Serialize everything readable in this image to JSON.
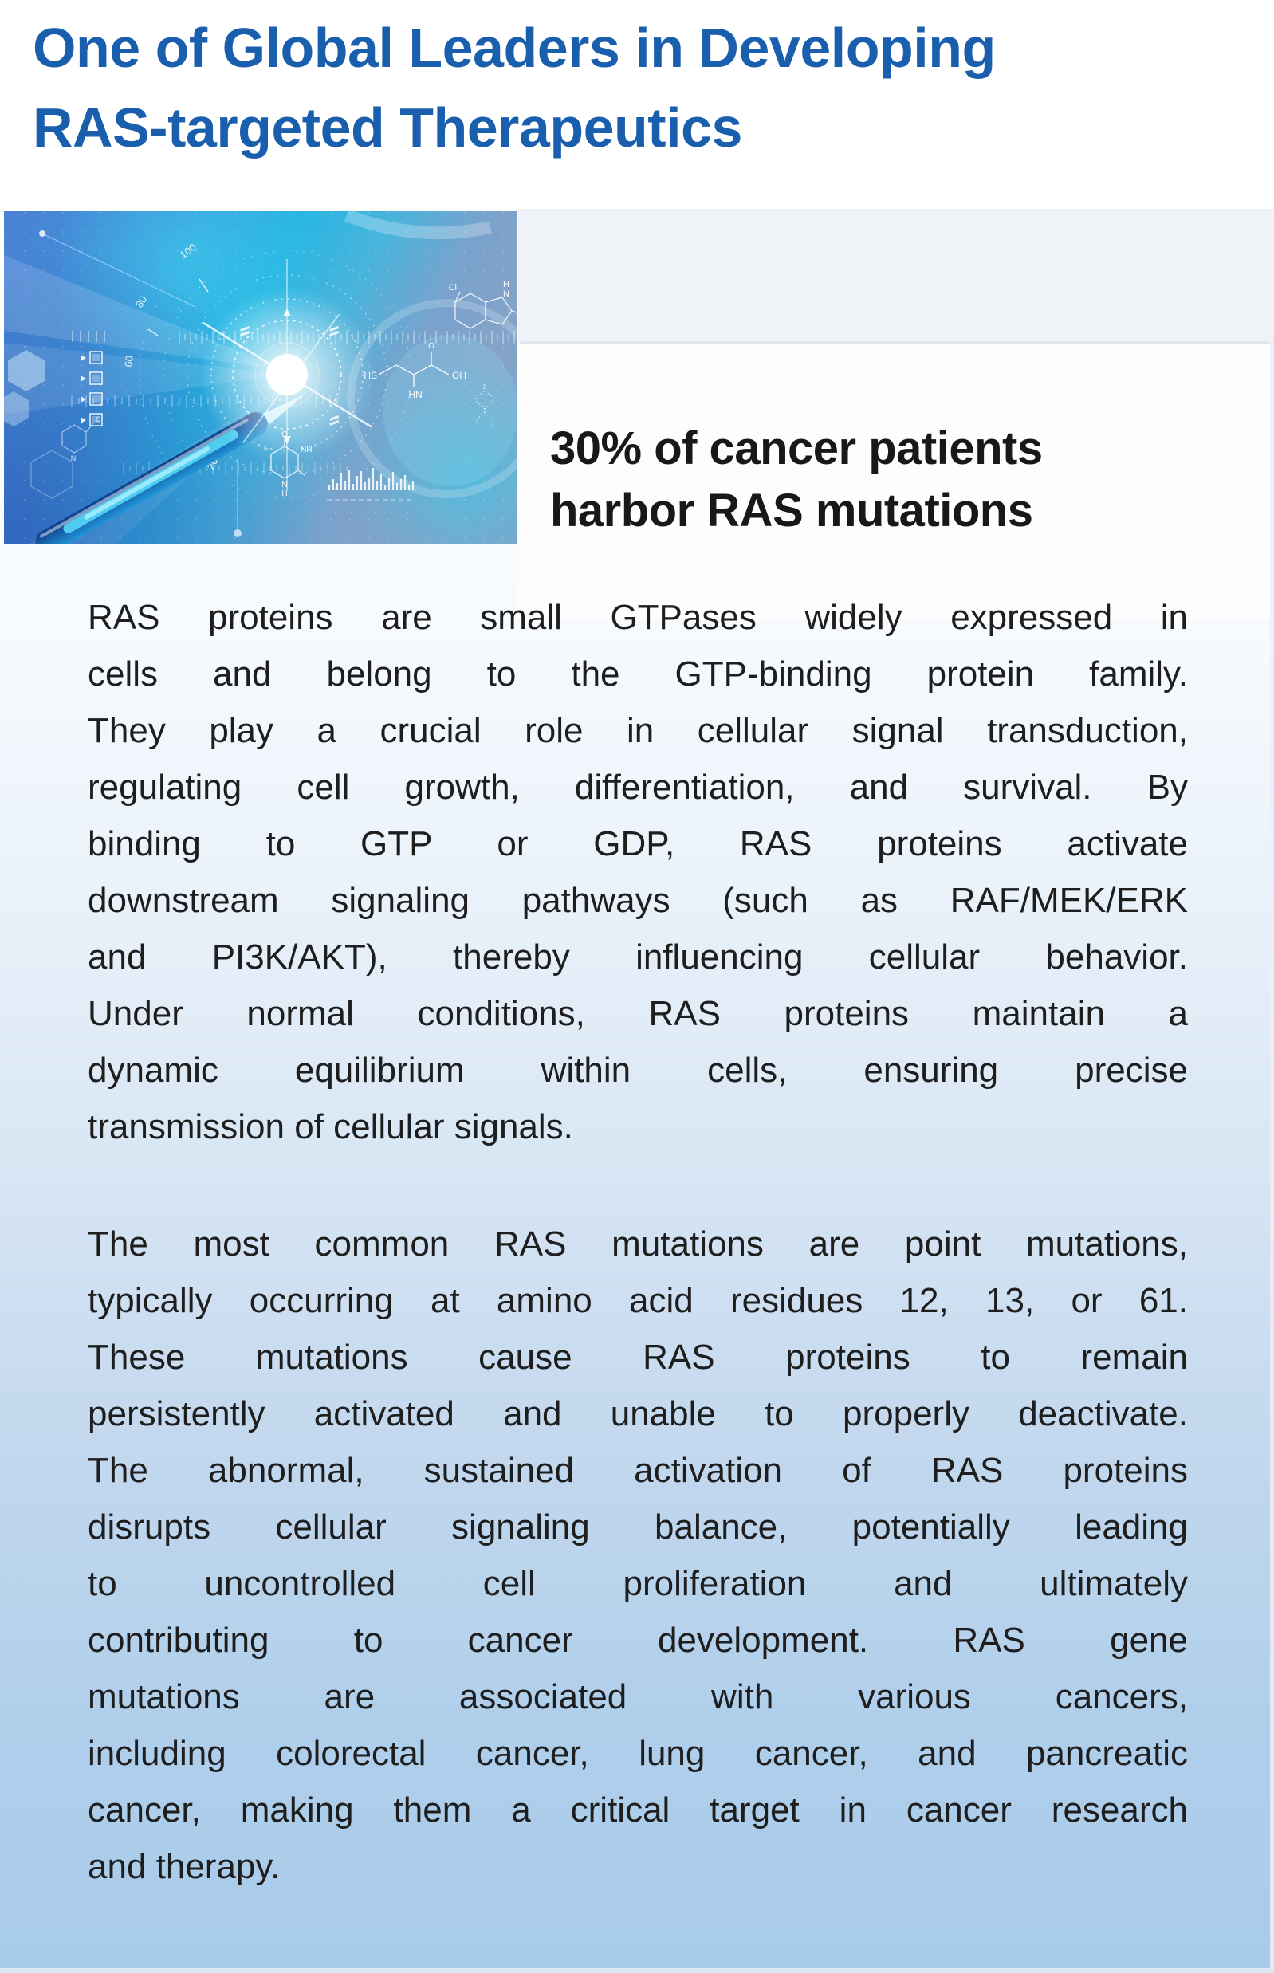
{
  "header": {
    "title_line1": "One of Global Leaders in Developing",
    "title_line2": "RAS-targeted Therapeutics"
  },
  "hero": {
    "stat_line1": "30% of cancer patients",
    "stat_line2": "harbor RAS mutations",
    "photo_labels": {
      "gauge_100": "100",
      "gauge_80": "80",
      "gauge_60": "60",
      "gauge_20": "20",
      "chem_cl": "Cl",
      "chem_h": "H",
      "chem_n": "N",
      "chem_o": "O",
      "chem_hs": "HS",
      "chem_hn": "HN",
      "chem_oh": "OH",
      "chem_f": "F",
      "chem_nh": "NH",
      "chem_c": "C"
    }
  },
  "article": {
    "paragraphs": [
      [
        "RAS proteins are small GTPases widely expressed in",
        "cells and belong to the GTP-binding protein family.",
        "They play a crucial role in cellular signal transduction,",
        "regulating cell growth, differentiation, and survival. By",
        "binding to GTP or GDP, RAS proteins activate",
        "downstream signaling pathways (such as RAF/MEK/ERK",
        "and PI3K/AKT), thereby influencing cellular behavior.",
        "Under normal conditions, RAS proteins maintain a",
        "dynamic equilibrium within cells, ensuring precise",
        "transmission of cellular signals."
      ],
      [
        "The most common RAS mutations are point mutations,",
        "typically occurring at amino acid residues 12, 13, or 61.",
        "These mutations cause RAS proteins to remain",
        "persistently activated and unable to properly deactivate.",
        "The abnormal, sustained activation of RAS proteins",
        "disrupts cellular signaling balance, potentially leading",
        "to uncontrolled cell proliferation and ultimately",
        "contributing to cancer development. RAS gene",
        "mutations are associated with various cancers,",
        "including colorectal cancer, lung cancer, and pancreatic",
        "cancer, making them a critical target in cancer research",
        "and therapy."
      ]
    ]
  },
  "colors": {
    "accent_blue": "#1a5fad",
    "stat_text": "#181818",
    "body_text": "#1e1e1e",
    "page_bottom_blue": "#a8cbea"
  }
}
